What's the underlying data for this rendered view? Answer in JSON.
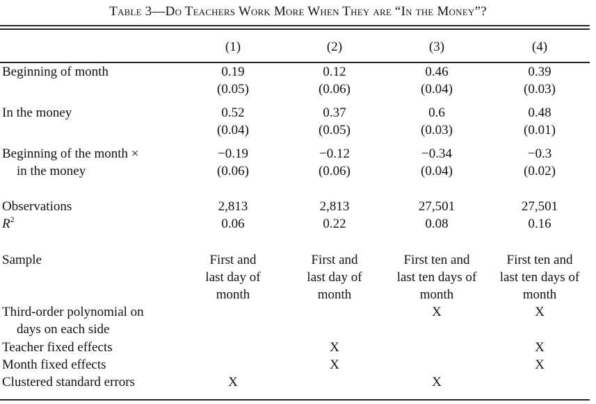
{
  "title": "Table 3—Do Teachers Work More When They are “In the Money”?",
  "columns": [
    "(1)",
    "(2)",
    "(3)",
    "(4)"
  ],
  "rows": {
    "beginning_of_month": {
      "label": "Beginning of month",
      "coef": [
        "0.19",
        "0.12",
        "0.46",
        "0.39"
      ],
      "se": [
        "(0.05)",
        "(0.06)",
        "(0.04)",
        "(0.03)"
      ]
    },
    "in_the_money": {
      "label": "In the money",
      "coef": [
        "0.52",
        "0.37",
        "0.6",
        "0.48"
      ],
      "se": [
        "(0.04)",
        "(0.05)",
        "(0.03)",
        "(0.01)"
      ]
    },
    "interaction": {
      "label_line1": "Beginning of the month ×",
      "label_line2": "in the money",
      "coef": [
        "−0.19",
        "−0.12",
        "−0.34",
        "−0.3"
      ],
      "se": [
        "(0.06)",
        "(0.06)",
        "(0.04)",
        "(0.02)"
      ]
    },
    "observations": {
      "label": "Observations",
      "values": [
        "2,813",
        "2,813",
        "27,501",
        "27,501"
      ]
    },
    "r2": {
      "label": "R",
      "label_sup": "2",
      "values": [
        "0.06",
        "0.22",
        "0.08",
        "0.16"
      ]
    },
    "sample": {
      "label": "Sample",
      "line1": [
        "First and",
        "First and",
        "First ten and",
        "First ten and"
      ],
      "line2": [
        "last day of",
        "last day of",
        "last ten days of",
        "last ten days of"
      ],
      "line3": [
        "month",
        "month",
        "month",
        "month"
      ]
    },
    "polynomial": {
      "label_line1": "Third-order polynomial on",
      "label_line2": "days on each side",
      "marks": [
        "",
        "",
        "X",
        "X"
      ]
    },
    "teacher_fe": {
      "label": "Teacher fixed effects",
      "marks": [
        "",
        "X",
        "",
        "X"
      ]
    },
    "month_fe": {
      "label": "Month fixed effects",
      "marks": [
        "",
        "X",
        "",
        "X"
      ]
    },
    "clustered_se": {
      "label": "Clustered standard errors",
      "marks": [
        "X",
        "",
        "X",
        ""
      ]
    }
  }
}
